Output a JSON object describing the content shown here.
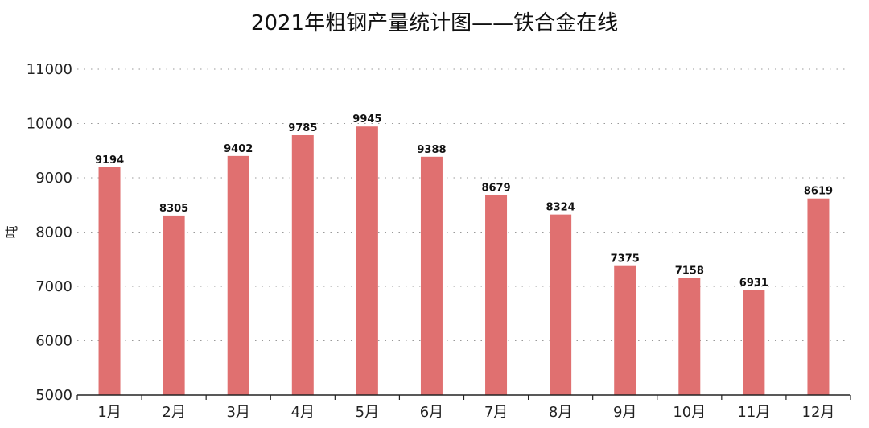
{
  "chart_data": {
    "type": "bar",
    "title": "2021年粗钢产量统计图——铁合金在线",
    "xlabel": "",
    "ylabel": "吨",
    "categories": [
      "1月",
      "2月",
      "3月",
      "4月",
      "5月",
      "6月",
      "7月",
      "8月",
      "9月",
      "10月",
      "11月",
      "12月"
    ],
    "values": [
      9194,
      8305,
      9402,
      9785,
      9945,
      9388,
      8679,
      8324,
      7375,
      7158,
      6931,
      8619
    ],
    "ylim": [
      5000,
      11000
    ],
    "yticks": [
      5000,
      6000,
      7000,
      8000,
      9000,
      10000,
      11000
    ],
    "grid": true,
    "bar_color": "#e07070",
    "data_labels": true
  }
}
